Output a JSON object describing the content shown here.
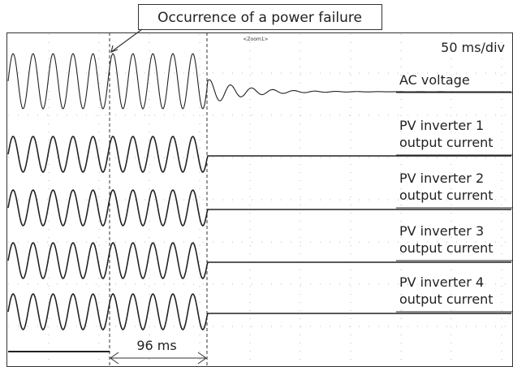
{
  "callout": "Occurrence of a power failure",
  "zoom_label": "<Zoom1>",
  "timebase": "50 ms/div",
  "traces": [
    {
      "label": [
        "AC voltage"
      ]
    },
    {
      "label": [
        "PV inverter 1",
        "output current"
      ]
    },
    {
      "label": [
        "PV inverter 2",
        "output current"
      ]
    },
    {
      "label": [
        "PV inverter 3",
        "output current"
      ]
    },
    {
      "label": [
        "PV inverter 4",
        "output current"
      ]
    }
  ],
  "interval": "96 ms"
}
